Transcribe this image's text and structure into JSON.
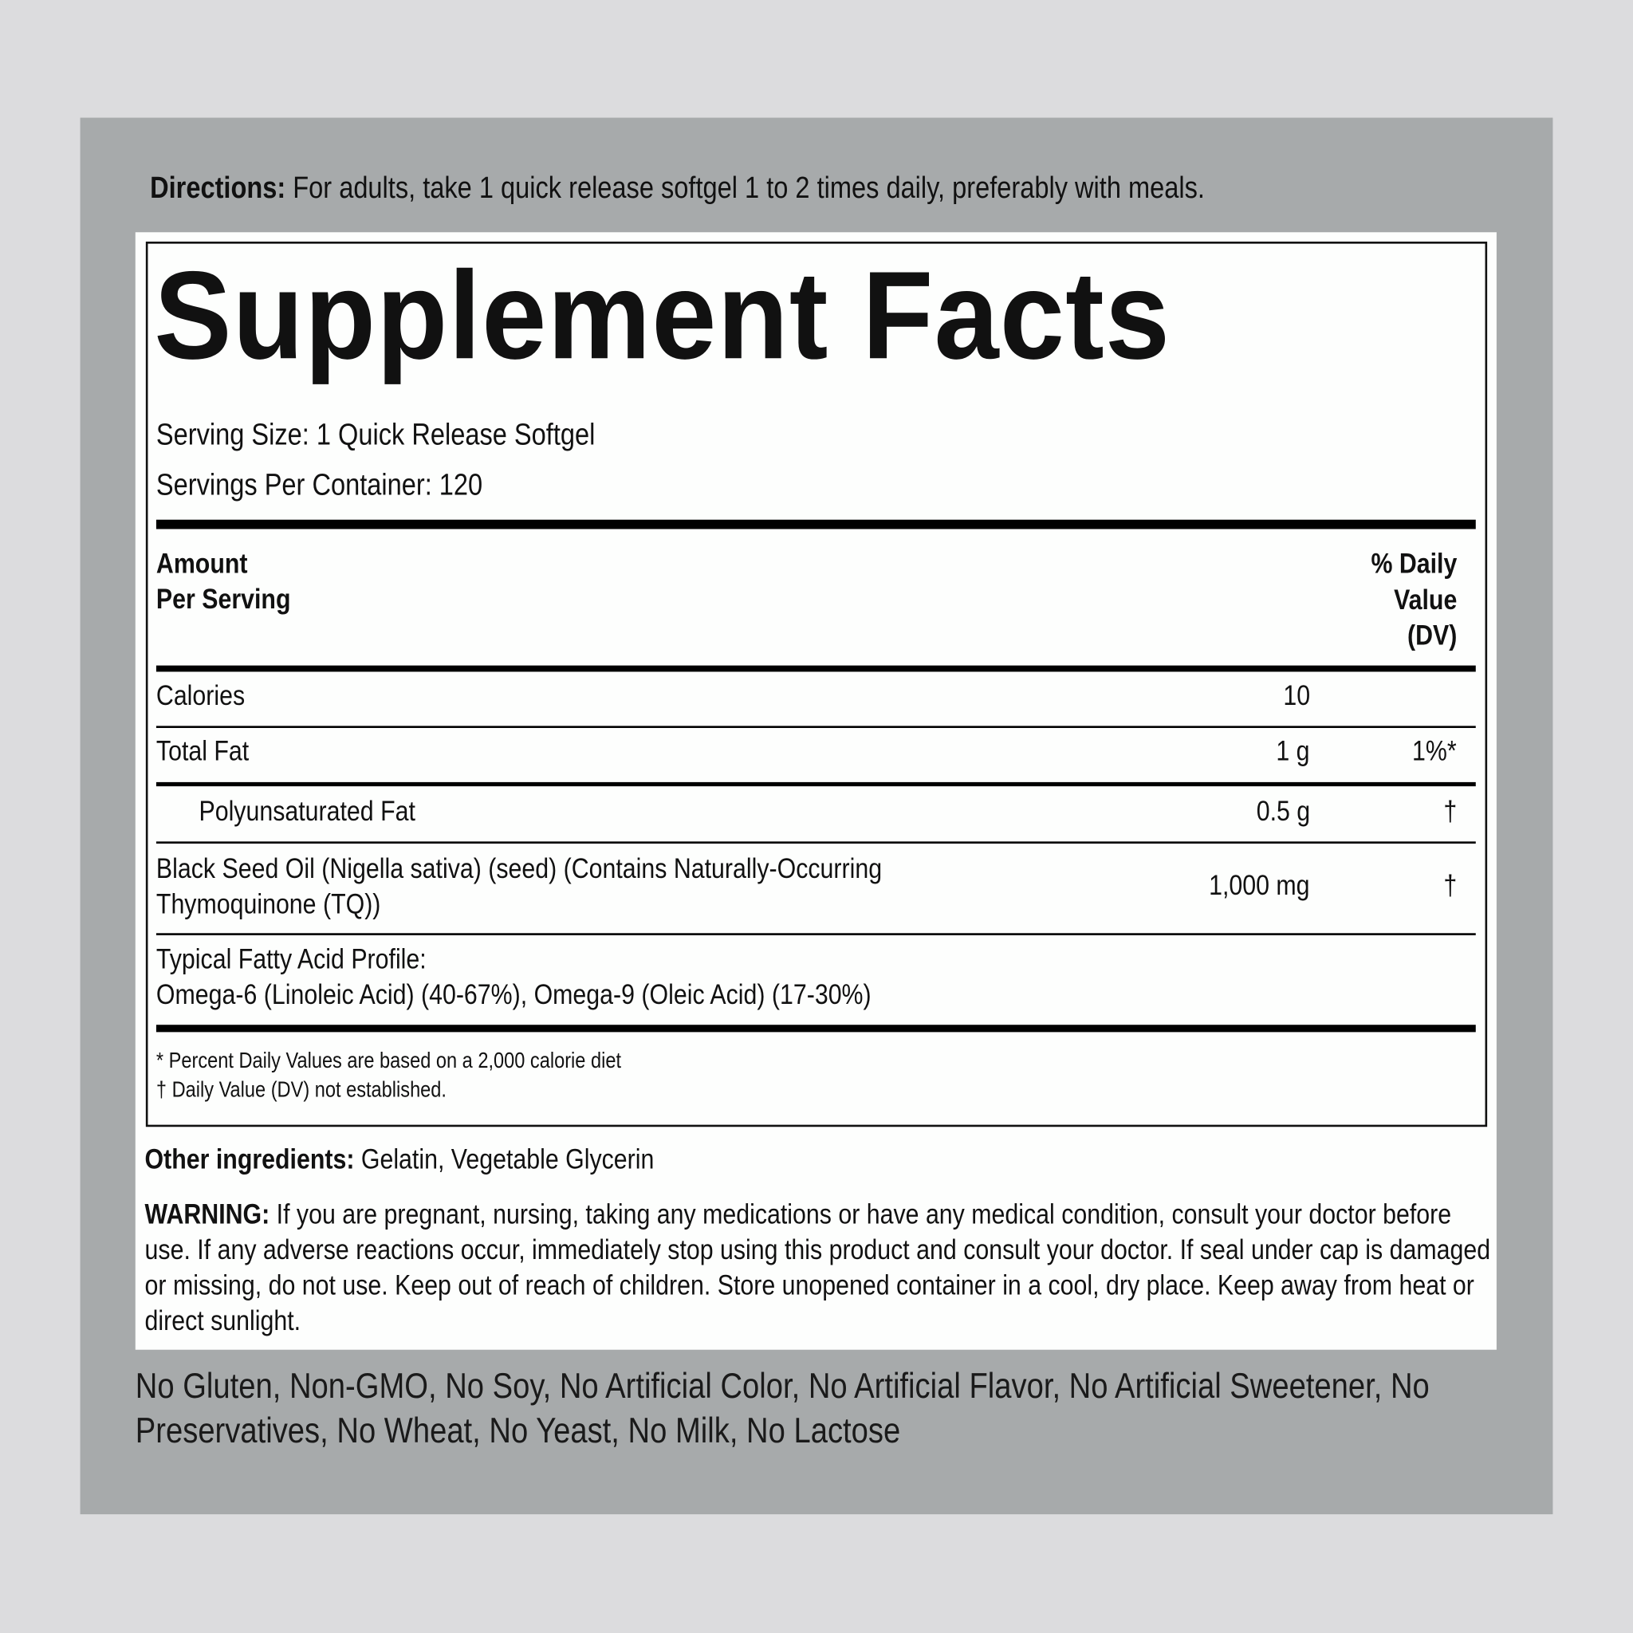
{
  "directions": {
    "label": "Directions:",
    "text": " For adults, take 1 quick release softgel 1 to 2 times daily, preferably with meals."
  },
  "facts": {
    "title": "Supplement Facts",
    "serving_size": "Serving Size: 1 Quick Release Softgel",
    "servings_per_container": "Servings Per Container: 120",
    "header": {
      "amount_line1": "Amount",
      "amount_line2": "Per Serving",
      "dv_line1": "% Daily",
      "dv_line2": "Value",
      "dv_line3": "(DV)"
    },
    "rows": [
      {
        "name": "Calories",
        "amount": "10",
        "dv": ""
      },
      {
        "name": "Total Fat",
        "amount": "1 g",
        "dv": "1%*"
      },
      {
        "name": "Polyunsaturated Fat",
        "amount": "0.5 g",
        "dv": "†"
      },
      {
        "name_line1": "Black Seed Oil (Nigella sativa) (seed) (Contains Naturally-Occurring",
        "name_line2": "Thymoquinone (TQ))",
        "amount": "1,000 mg",
        "dv": "†"
      }
    ],
    "profile_line1": "Typical Fatty Acid Profile:",
    "profile_line2": "Omega-6 (Linoleic Acid) (40-67%), Omega-9 (Oleic Acid) (17-30%)",
    "footnote1": "* Percent Daily Values are based on a 2,000 calorie diet",
    "footnote2": "† Daily Value (DV) not established."
  },
  "other_ingredients": {
    "label": "Other ingredients:",
    "text": " Gelatin, Vegetable Glycerin"
  },
  "warning": {
    "label": "WARNING:",
    "text": " If you are pregnant, nursing, taking any medications or have any medical condition, consult your doctor before use. If any adverse reactions occur, immediately stop using this product and consult your doctor. If seal under cap is damaged or missing, do not use. Keep out of reach of children. Store unopened container in a cool, dry place. Keep away from heat or direct sunlight."
  },
  "free_from": "No Gluten, Non-GMO, No Soy, No Artificial Color, No Artificial Flavor, No Artificial Sweetener, No Preservatives, No Wheat, No Yeast, No Milk, No Lactose",
  "colors": {
    "page_bg": "#dcdcde",
    "panel_gray": "#a7aaab",
    "label_white": "#fdfefd",
    "text": "#111111"
  }
}
